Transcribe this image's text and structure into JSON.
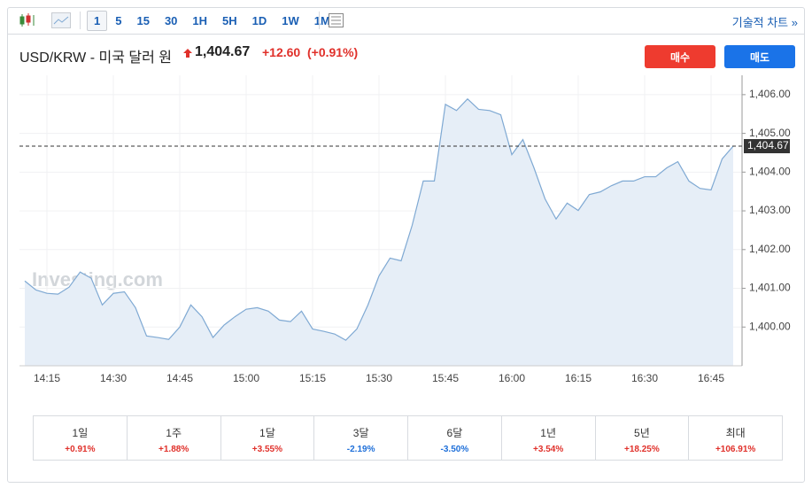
{
  "toolbar": {
    "intervals": [
      "1",
      "5",
      "15",
      "30",
      "1H",
      "5H",
      "1D",
      "1W",
      "1M"
    ],
    "link": "기술적 차트 »"
  },
  "header": {
    "title": "USD/KRW - 미국 달러 원",
    "price": "1,404.67",
    "change": "+12.60",
    "change_pct": "(+0.91%)"
  },
  "buttons": {
    "buy": "매수",
    "sell": "매도"
  },
  "chart_data": {
    "type": "line",
    "watermark": "Investing.com",
    "color": "#7fa9d3",
    "grid": true,
    "categories": [
      null,
      null,
      "14:15",
      null,
      null,
      null,
      null,
      null,
      "14:30",
      null,
      null,
      null,
      null,
      null,
      "14:45",
      null,
      null,
      null,
      null,
      null,
      "15:00",
      null,
      null,
      null,
      null,
      null,
      "15:15",
      null,
      null,
      null,
      null,
      null,
      "15:30",
      null,
      null,
      null,
      null,
      null,
      "15:45",
      null,
      null,
      null,
      null,
      null,
      "16:00",
      null,
      null,
      null,
      null,
      null,
      "16:15",
      null,
      null,
      null,
      null,
      null,
      "16:30",
      null,
      null,
      null,
      null,
      null,
      "16:45",
      null,
      null
    ],
    "values": [
      1401.19,
      1400.96,
      1400.87,
      1400.85,
      1401.03,
      1401.42,
      1401.26,
      1400.57,
      1400.87,
      1400.91,
      1400.5,
      1399.77,
      1399.73,
      1399.68,
      1400.0,
      1400.57,
      1400.27,
      1399.73,
      1400.05,
      1400.27,
      1400.46,
      1400.5,
      1400.41,
      1400.18,
      1400.14,
      1400.41,
      1399.95,
      1399.89,
      1399.82,
      1399.66,
      1399.95,
      1400.57,
      1401.32,
      1401.78,
      1401.71,
      1402.63,
      1403.77,
      1403.77,
      1405.75,
      1405.59,
      1405.89,
      1405.62,
      1405.59,
      1405.48,
      1404.45,
      1404.84,
      1404.11,
      1403.31,
      1402.79,
      1403.2,
      1403.01,
      1403.42,
      1403.49,
      1403.65,
      1403.77,
      1403.77,
      1403.88,
      1403.88,
      1404.11,
      1404.27,
      1403.77,
      1403.58,
      1403.54,
      1404.34,
      1404.67
    ],
    "ylim": [
      1399,
      1406.5
    ],
    "yticks": [
      {
        "value": 1400,
        "label": "1,400.00"
      },
      {
        "value": 1401,
        "label": "1,401.00"
      },
      {
        "value": 1402,
        "label": "1,402.00"
      },
      {
        "value": 1403,
        "label": "1,403.00"
      },
      {
        "value": 1404,
        "label": "1,404.00"
      },
      {
        "value": 1405,
        "label": "1,405.00"
      },
      {
        "value": 1406,
        "label": "1,406.00"
      }
    ],
    "last_price": {
      "value": 1404.67,
      "label": "1,404.67"
    }
  },
  "performance": {
    "periods": [
      "1일",
      "1주",
      "1달",
      "3달",
      "6달",
      "1년",
      "5년",
      "최대"
    ],
    "changes": [
      "+0.91%",
      "+1.88%",
      "+3.55%",
      "-2.19%",
      "-3.50%",
      "+3.54%",
      "+18.25%",
      "+106.91%"
    ]
  }
}
